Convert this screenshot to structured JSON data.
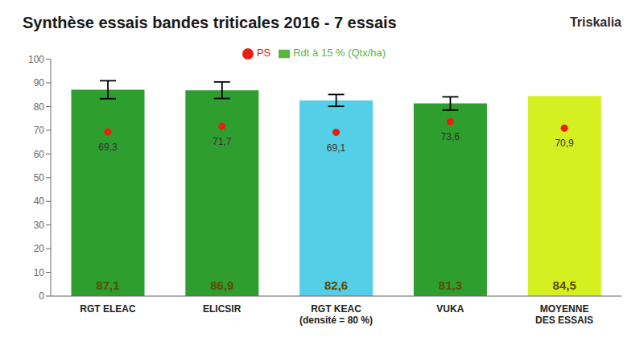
{
  "chart_data": {
    "type": "bar",
    "title": "Synthèse essais bandes triticales 2016 - 7 essais",
    "annotations": [
      "Triskalia"
    ],
    "categories": [
      "RGT ELEAC",
      "ELICSIR",
      "RGT KEAC\n(densité = 80 %)",
      "VUKA",
      "MOYENNE\nDES ESSAIS"
    ],
    "series": [
      {
        "name": "Rdt à 15 % (Qtx/ha)",
        "type": "bar",
        "color": "#5ab543",
        "colors": [
          "#2e9e2e",
          "#2e9e2e",
          "#55cfe8",
          "#2e9e2e",
          "#d4f020"
        ],
        "values": [
          87.1,
          86.9,
          82.6,
          81.3,
          84.5
        ],
        "value_labels": [
          "87,1",
          "86,9",
          "82,6",
          "81,3",
          "84,5"
        ],
        "error_bars": [
          3.8,
          3.5,
          2.5,
          2.8,
          0.0
        ]
      },
      {
        "name": "PS",
        "type": "scatter",
        "color": "#e82010",
        "values": [
          69.3,
          71.7,
          69.1,
          73.6,
          70.9
        ],
        "value_labels": [
          "69,3",
          "71,7",
          "69,1",
          "73,6",
          "70,9"
        ]
      }
    ],
    "ylim": [
      0,
      100
    ],
    "yticks": [
      0,
      10,
      20,
      30,
      40,
      50,
      60,
      70,
      80,
      90,
      100
    ],
    "grid": false,
    "legend": "top",
    "data_labels": true
  }
}
